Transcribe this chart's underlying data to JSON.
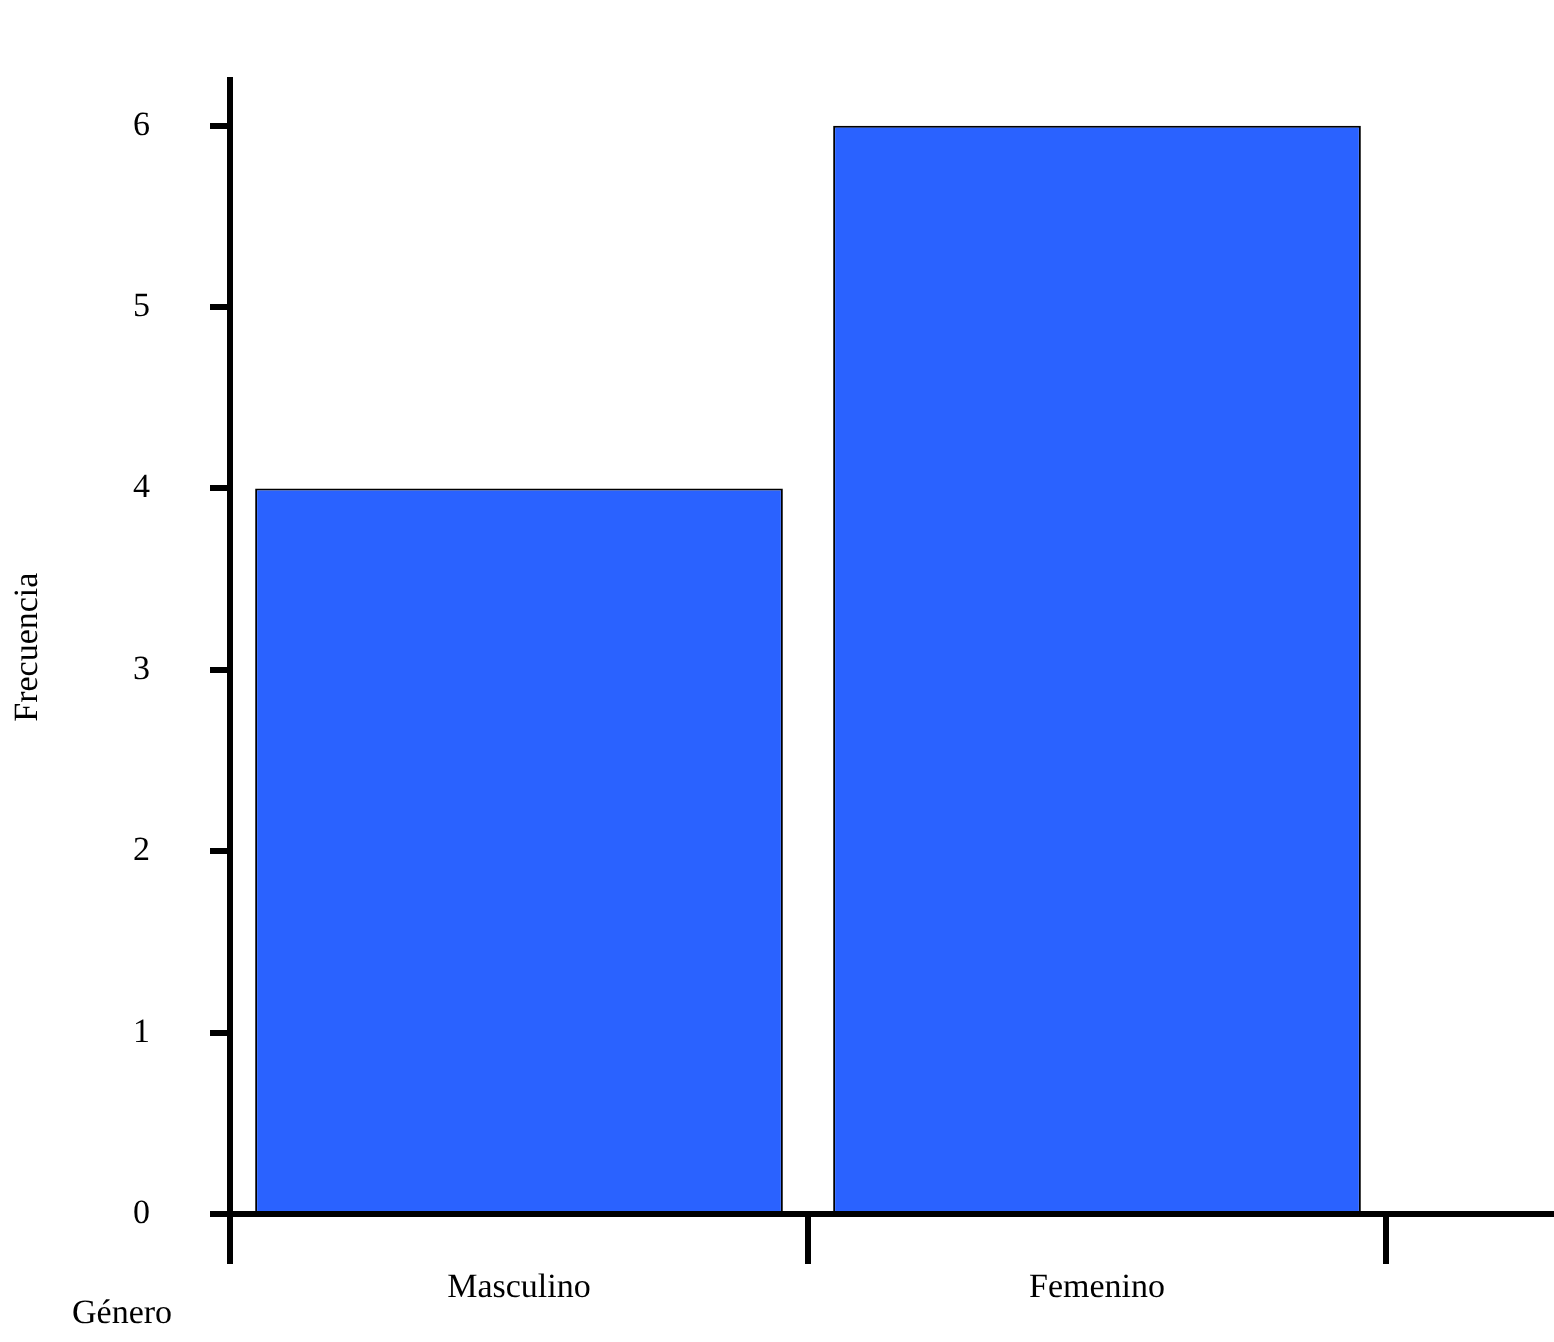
{
  "chart_data": {
    "type": "bar",
    "xlabel": "Género",
    "ylabel": "Frecuencia",
    "categories": [
      "Masculino",
      "Femenino"
    ],
    "values": [
      4,
      6
    ],
    "color": "#2a62ff",
    "ylim": [
      0,
      6.25
    ],
    "yticks": [
      0,
      1,
      2,
      3,
      4,
      5,
      6
    ],
    "grid": false,
    "legend": false
  }
}
